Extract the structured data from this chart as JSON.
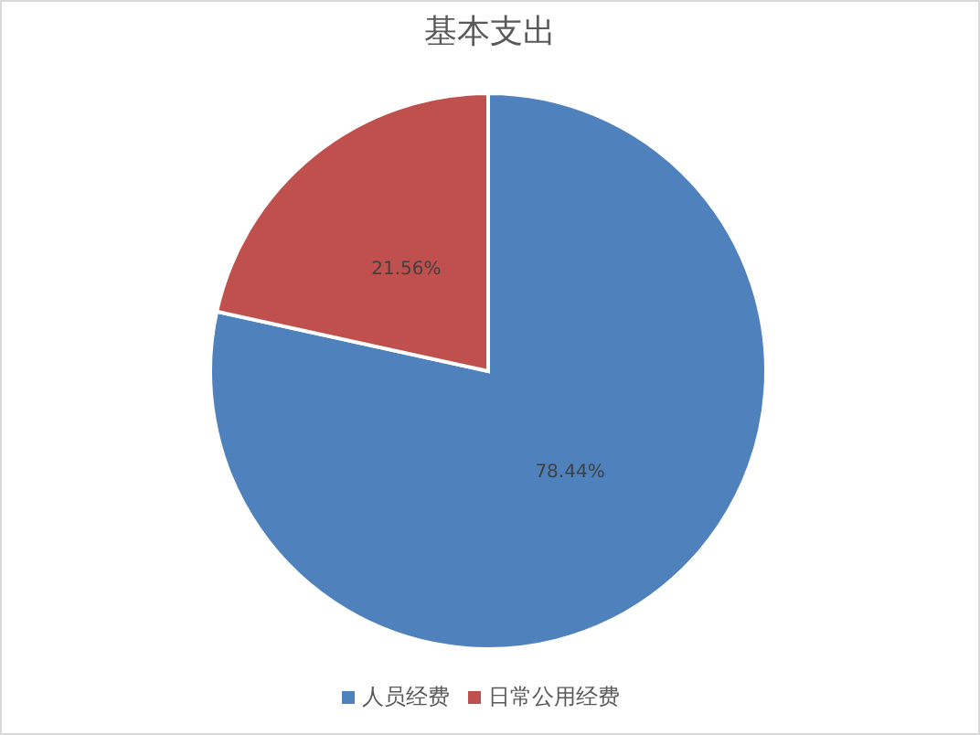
{
  "chart_data": {
    "type": "pie",
    "title": "基本支出",
    "categories": [
      "人员经费",
      "日常公用经费"
    ],
    "values": [
      78.44,
      21.56
    ],
    "colors": [
      "#4f81bd",
      "#c0504d"
    ],
    "value_labels": [
      "78.44%",
      "21.56%"
    ],
    "legend": "bottom"
  }
}
